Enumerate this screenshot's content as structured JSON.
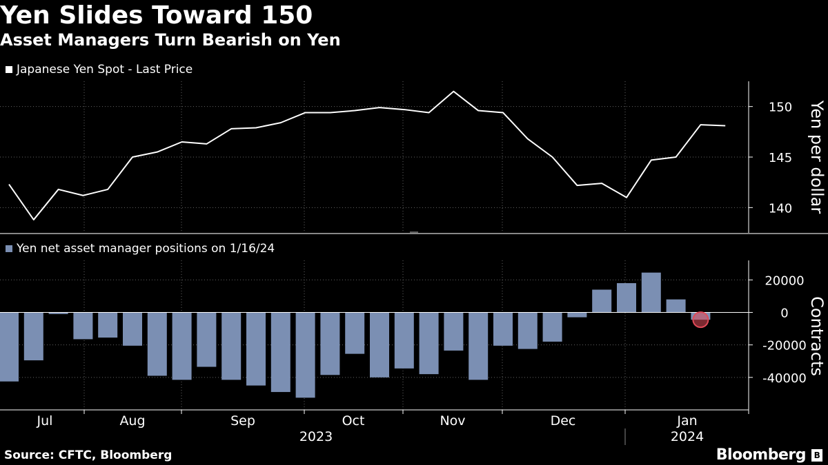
{
  "title": "Yen Slides Toward 150",
  "subtitle": "Asset Managers Turn Bearish on Yen",
  "source": "Source: CFTC, Bloomberg",
  "brand": "Bloomberg",
  "brand_icon": "B",
  "colors": {
    "line": "#ffffff",
    "bar": "#7b8fb3",
    "highlight": "#e04a58",
    "grid": "#666666"
  },
  "chart_data": [
    {
      "type": "line",
      "legend": "Japanese Yen Spot - Last Price",
      "ylabel": "Yen per dollar",
      "ylim": [
        137.5,
        152.5
      ],
      "yticks": [
        140,
        145,
        150
      ],
      "x_index": [
        0,
        1,
        2,
        3,
        4,
        5,
        6,
        7,
        8,
        9,
        10,
        11,
        12,
        13,
        14,
        15,
        16,
        17,
        18,
        19,
        20,
        21,
        22,
        23,
        24,
        25,
        26,
        27,
        28,
        29
      ],
      "values": [
        142.3,
        138.8,
        141.8,
        141.2,
        141.8,
        145.0,
        145.5,
        146.5,
        146.3,
        147.8,
        147.9,
        148.4,
        149.4,
        149.4,
        149.6,
        149.9,
        149.7,
        149.4,
        151.5,
        149.6,
        149.4,
        146.8,
        145.0,
        142.2,
        142.4,
        141.0,
        144.7,
        145.0,
        148.2,
        148.1
      ]
    },
    {
      "type": "bar",
      "legend": "Yen net asset manager positions on 1/16/24",
      "ylabel": "Contracts",
      "ylim": [
        -60000,
        32000
      ],
      "yticks": [
        20000,
        0,
        -20000,
        -40000
      ],
      "ytick_labels": [
        "20000",
        "0",
        "-20000",
        "-40000"
      ],
      "values": [
        -42500,
        -29500,
        -1000,
        -16500,
        -15500,
        -20500,
        -39000,
        -41500,
        -33500,
        -41500,
        -45000,
        -49000,
        -52500,
        -38500,
        -25500,
        -40000,
        -34500,
        -38000,
        -23500,
        -41500,
        -20500,
        -22500,
        -18000,
        -3000,
        14000,
        18000,
        24500,
        8000,
        -4500
      ],
      "highlight_index": 28
    }
  ],
  "x_axis": {
    "months": [
      "Jul",
      "Aug",
      "Sep",
      "Oct",
      "Nov",
      "Dec",
      "Jan"
    ],
    "years": [
      "2023",
      "2024"
    ]
  }
}
